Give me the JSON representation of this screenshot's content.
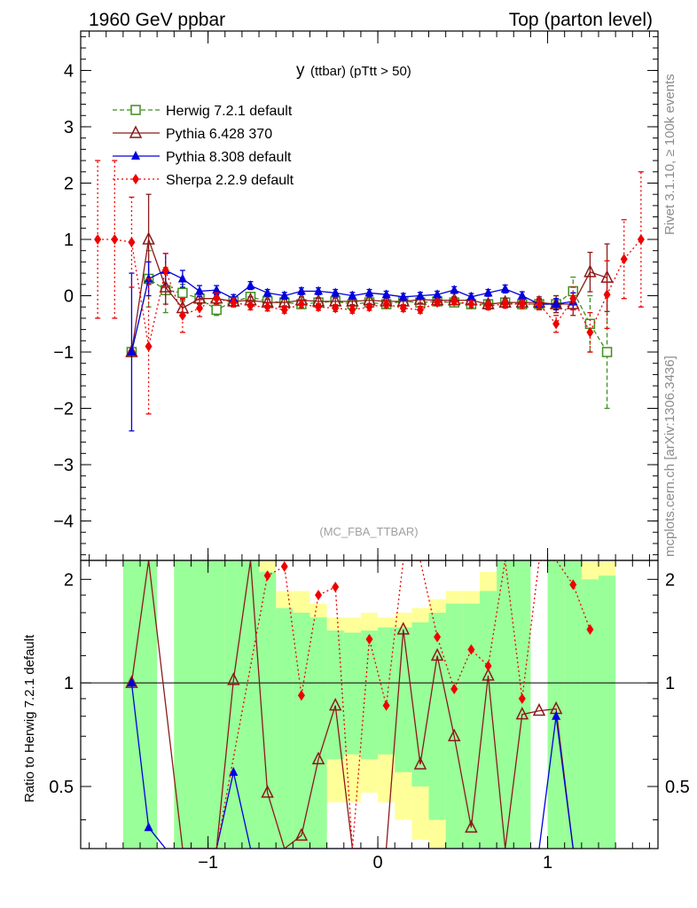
{
  "header": {
    "left": "1960 GeV ppbar",
    "right": "Top (parton level)"
  },
  "side_labels": {
    "rivet": "Rivet 3.1.10, ≥ 100k events",
    "mcplots": "mcplots.cern.ch [arXiv:1306.3436]"
  },
  "chart_data": {
    "type": "line",
    "title_main": "y",
    "title_sub": "(ttbar)  (pTtt > 50)",
    "analysis_tag": "(MC_FBA_TTBAR)",
    "xlim": [
      -1.75,
      1.65
    ],
    "ylim": [
      -4.7,
      4.7
    ],
    "xticks": [
      -1,
      0,
      1
    ],
    "xtick_labels": [
      "−1",
      "0",
      "1"
    ],
    "yticks": [
      -4,
      -3,
      -2,
      -1,
      0,
      1,
      2,
      3,
      4
    ],
    "ytick_labels": [
      "−4",
      "−3",
      "−2",
      "−1",
      "0",
      "1",
      "2",
      "3",
      "4"
    ],
    "series": [
      {
        "name": "Herwig 7.2.1 default",
        "color": "#3f8f1f",
        "marker": "open-square",
        "line": "dashed",
        "x": [
          -1.45,
          -1.35,
          -1.25,
          -1.15,
          -1.05,
          -0.95,
          -0.85,
          -0.75,
          -0.65,
          -0.55,
          -0.45,
          -0.35,
          -0.25,
          -0.15,
          -0.05,
          0.05,
          0.15,
          0.25,
          0.35,
          0.45,
          0.55,
          0.65,
          0.75,
          0.85,
          0.95,
          1.05,
          1.15,
          1.25,
          1.35
        ],
        "y": [
          -1.0,
          0.3,
          0.1,
          0.05,
          -0.05,
          -0.25,
          -0.1,
          -0.02,
          -0.1,
          -0.12,
          -0.15,
          -0.12,
          -0.1,
          -0.15,
          -0.12,
          -0.15,
          -0.1,
          -0.12,
          -0.1,
          -0.12,
          -0.15,
          -0.15,
          -0.12,
          -0.15,
          -0.15,
          -0.15,
          0.08,
          -0.5,
          -1.0
        ],
        "err": [
          0,
          0.5,
          0.4,
          0.15,
          0.1,
          0.1,
          0.08,
          0.07,
          0.06,
          0.06,
          0.06,
          0.06,
          0.06,
          0.06,
          0.06,
          0.06,
          0.06,
          0.06,
          0.06,
          0.06,
          0.06,
          0.07,
          0.07,
          0.08,
          0.1,
          0.15,
          0.25,
          0.5,
          1.0
        ]
      },
      {
        "name": "Pythia 6.428 370",
        "color": "#8b1a1a",
        "marker": "open-triangle",
        "line": "solid",
        "x": [
          -1.45,
          -1.35,
          -1.25,
          -1.15,
          -1.05,
          -0.95,
          -0.85,
          -0.75,
          -0.65,
          -0.55,
          -0.45,
          -0.35,
          -0.25,
          -0.15,
          -0.05,
          0.05,
          0.15,
          0.25,
          0.35,
          0.45,
          0.55,
          0.65,
          0.75,
          0.85,
          0.95,
          1.05,
          1.15,
          1.25,
          1.35
        ],
        "y": [
          -1.0,
          1.0,
          0.15,
          -0.22,
          -0.05,
          -0.05,
          -0.1,
          -0.08,
          -0.12,
          -0.12,
          -0.08,
          -0.1,
          -0.1,
          -0.1,
          -0.08,
          -0.1,
          -0.1,
          -0.07,
          -0.08,
          -0.08,
          -0.08,
          -0.15,
          -0.12,
          -0.12,
          -0.12,
          -0.15,
          -0.15,
          0.42,
          0.32
        ],
        "err": [
          0,
          0.8,
          0.3,
          0.15,
          0.1,
          0.08,
          0.07,
          0.06,
          0.06,
          0.06,
          0.06,
          0.06,
          0.06,
          0.06,
          0.06,
          0.06,
          0.06,
          0.06,
          0.06,
          0.06,
          0.06,
          0.06,
          0.07,
          0.08,
          0.1,
          0.15,
          0.2,
          0.35,
          0.6
        ]
      },
      {
        "name": "Pythia 8.308 default",
        "color": "#0000dd",
        "marker": "filled-triangle",
        "line": "solid",
        "x": [
          -1.45,
          -1.35,
          -1.25,
          -1.15,
          -1.05,
          -0.95,
          -0.85,
          -0.75,
          -0.65,
          -0.55,
          -0.45,
          -0.35,
          -0.25,
          -0.15,
          -0.05,
          0.05,
          0.15,
          0.25,
          0.35,
          0.45,
          0.55,
          0.65,
          0.75,
          0.85,
          0.95,
          1.05,
          1.15
        ],
        "y": [
          -1.0,
          0.3,
          0.45,
          0.3,
          0.08,
          0.1,
          -0.05,
          0.18,
          0.05,
          0.0,
          0.08,
          0.08,
          0.05,
          0.0,
          0.05,
          0.02,
          -0.02,
          0.0,
          0.02,
          0.1,
          -0.02,
          0.05,
          0.12,
          0.0,
          -0.15,
          -0.15,
          -0.1
        ],
        "err": [
          1.4,
          0.3,
          0.3,
          0.15,
          0.1,
          0.08,
          0.07,
          0.07,
          0.06,
          0.06,
          0.06,
          0.06,
          0.06,
          0.06,
          0.06,
          0.06,
          0.06,
          0.06,
          0.06,
          0.06,
          0.06,
          0.06,
          0.07,
          0.07,
          0.1,
          0.1,
          0.15
        ]
      },
      {
        "name": "Sherpa 2.2.9 default",
        "color": "#ee0000",
        "marker": "filled-diamond",
        "line": "dotted",
        "x": [
          -1.65,
          -1.55,
          -1.45,
          -1.35,
          -1.25,
          -1.15,
          -1.05,
          -0.95,
          -0.85,
          -0.75,
          -0.65,
          -0.55,
          -0.45,
          -0.35,
          -0.25,
          -0.15,
          -0.05,
          0.05,
          0.15,
          0.25,
          0.35,
          0.45,
          0.55,
          0.65,
          0.75,
          0.85,
          0.95,
          1.05,
          1.15,
          1.25,
          1.35,
          1.45,
          1.55
        ],
        "y": [
          1.0,
          1.0,
          0.95,
          -0.9,
          0.45,
          -0.35,
          -0.22,
          -0.05,
          -0.12,
          -0.18,
          -0.2,
          -0.25,
          -0.15,
          -0.2,
          -0.22,
          -0.25,
          -0.2,
          -0.15,
          -0.22,
          -0.25,
          -0.12,
          -0.1,
          -0.15,
          -0.18,
          -0.15,
          -0.15,
          -0.15,
          -0.5,
          -0.05,
          -0.65,
          0.02,
          0.65,
          1.0
        ],
        "err": [
          1.4,
          1.4,
          0.8,
          1.2,
          0.3,
          0.3,
          0.15,
          0.1,
          0.08,
          0.07,
          0.07,
          0.06,
          0.06,
          0.06,
          0.06,
          0.06,
          0.06,
          0.06,
          0.06,
          0.06,
          0.06,
          0.06,
          0.06,
          0.07,
          0.07,
          0.08,
          0.1,
          0.15,
          0.2,
          0.35,
          0.6,
          0.7,
          1.2
        ]
      }
    ],
    "ratio": {
      "ylabel": "Ratio to Herwig 7.2.1 default",
      "ylim": [
        0.33,
        2.27
      ],
      "yticks": [
        0.5,
        1,
        2
      ],
      "ytick_labels": [
        "0.5",
        "1",
        "2"
      ],
      "bands": [
        {
          "x0": -1.5,
          "x1": -1.4,
          "g0": 0.3,
          "g1": 2.4,
          "y0": 0.3,
          "y1": 2.4
        },
        {
          "x0": -1.4,
          "x1": -1.3,
          "g0": 0.3,
          "g1": 2.4,
          "y0": 0.3,
          "y1": 2.4
        },
        {
          "x0": -1.2,
          "x1": -1.1,
          "g0": 0.3,
          "g1": 2.4,
          "y0": 0.3,
          "y1": 2.4
        },
        {
          "x0": -1.1,
          "x1": -1.0,
          "g0": 0.3,
          "g1": 2.4,
          "y0": 0.3,
          "y1": 2.4
        },
        {
          "x0": -1.0,
          "x1": -0.9,
          "g0": 0.3,
          "g1": 2.4,
          "y0": 0.3,
          "y1": 2.4
        },
        {
          "x0": -0.9,
          "x1": -0.8,
          "g0": 0.3,
          "g1": 2.4,
          "y0": 0.3,
          "y1": 2.4
        },
        {
          "x0": -0.8,
          "x1": -0.7,
          "g0": 0.3,
          "g1": 2.4,
          "y0": 0.3,
          "y1": 2.4
        },
        {
          "x0": -0.7,
          "x1": -0.6,
          "g0": 0.3,
          "g1": 2.1,
          "y0": 0.3,
          "y1": 2.4
        },
        {
          "x0": -0.6,
          "x1": -0.5,
          "g0": 0.3,
          "g1": 1.65,
          "y0": 0.3,
          "y1": 1.85
        },
        {
          "x0": -0.5,
          "x1": -0.4,
          "g0": 0.3,
          "g1": 1.6,
          "y0": 0.3,
          "y1": 1.85
        },
        {
          "x0": -0.4,
          "x1": -0.3,
          "g0": 0.3,
          "g1": 1.55,
          "y0": 0.3,
          "y1": 1.7
        },
        {
          "x0": -0.3,
          "x1": -0.2,
          "g0": 0.6,
          "g1": 1.42,
          "y0": 0.45,
          "y1": 1.55
        },
        {
          "x0": -0.2,
          "x1": -0.1,
          "g0": 0.62,
          "g1": 1.4,
          "y0": 0.45,
          "y1": 1.55
        },
        {
          "x0": -0.1,
          "x1": 0.0,
          "g0": 0.6,
          "g1": 1.42,
          "y0": 0.48,
          "y1": 1.6
        },
        {
          "x0": 0.0,
          "x1": 0.1,
          "g0": 0.62,
          "g1": 1.45,
          "y0": 0.45,
          "y1": 1.55
        },
        {
          "x0": 0.1,
          "x1": 0.2,
          "g0": 0.55,
          "g1": 1.45,
          "y0": 0.4,
          "y1": 1.6
        },
        {
          "x0": 0.2,
          "x1": 0.3,
          "g0": 0.5,
          "g1": 1.5,
          "y0": 0.35,
          "y1": 1.65
        },
        {
          "x0": 0.3,
          "x1": 0.4,
          "g0": 0.4,
          "g1": 1.6,
          "y0": 0.3,
          "y1": 1.75
        },
        {
          "x0": 0.4,
          "x1": 0.5,
          "g0": 0.3,
          "g1": 1.7,
          "y0": 0.3,
          "y1": 1.85
        },
        {
          "x0": 0.5,
          "x1": 0.6,
          "g0": 0.3,
          "g1": 1.7,
          "y0": 0.3,
          "y1": 1.85
        },
        {
          "x0": 0.6,
          "x1": 0.7,
          "g0": 0.3,
          "g1": 1.85,
          "y0": 0.3,
          "y1": 2.1
        },
        {
          "x0": 0.7,
          "x1": 0.8,
          "g0": 0.3,
          "g1": 2.4,
          "y0": 0.3,
          "y1": 2.4
        },
        {
          "x0": 0.8,
          "x1": 0.9,
          "g0": 0.3,
          "g1": 2.4,
          "y0": 0.3,
          "y1": 2.4
        },
        {
          "x0": 1.0,
          "x1": 1.1,
          "g0": 0.3,
          "g1": 2.4,
          "y0": 0.3,
          "y1": 2.4
        },
        {
          "x0": 1.1,
          "x1": 1.2,
          "g0": 0.3,
          "g1": 2.4,
          "y0": 0.3,
          "y1": 2.4
        },
        {
          "x0": 1.2,
          "x1": 1.3,
          "g0": 0.3,
          "g1": 2.0,
          "y0": 0.3,
          "y1": 2.25
        },
        {
          "x0": 1.3,
          "x1": 1.4,
          "g0": 0.3,
          "g1": 2.05,
          "y0": 0.3,
          "y1": 2.25
        }
      ],
      "series": [
        {
          "name": "Pythia 6.428 370",
          "x": [
            -1.45,
            -1.35,
            -1.15,
            -0.95,
            -0.85,
            -0.75,
            -0.65,
            -0.55,
            -0.45,
            -0.35,
            -0.25,
            -0.15,
            -0.05,
            0.05,
            0.15,
            0.25,
            0.35,
            0.45,
            0.55,
            0.65,
            0.75,
            0.85,
            0.95,
            1.05,
            1.15
          ],
          "y": [
            1.0,
            2.4,
            0.25,
            0.25,
            1.02,
            2.4,
            0.48,
            0.25,
            0.36,
            0.6,
            0.86,
            0.25,
            0.25,
            0.25,
            1.43,
            0.58,
            1.2,
            0.7,
            0.38,
            1.05,
            0.25,
            0.81,
            0.83,
            0.84,
            0.25
          ]
        },
        {
          "name": "Pythia 8.308 default",
          "x": [
            -1.45,
            -1.35,
            -1.25,
            -0.95,
            -0.85,
            -0.75,
            0.95,
            1.05,
            1.15
          ],
          "y": [
            1.0,
            0.38,
            0.25,
            0.25,
            0.55,
            0.25,
            0.25,
            0.8,
            0.25
          ]
        },
        {
          "name": "Sherpa 2.2.9 default",
          "x": [
            -1.15,
            -0.95,
            -0.65,
            -0.55,
            -0.45,
            -0.35,
            -0.25,
            -0.15,
            -0.05,
            0.05,
            0.15,
            0.25,
            0.35,
            0.45,
            0.55,
            0.65,
            0.75,
            0.85,
            0.95,
            1.05,
            1.15,
            1.25
          ],
          "y": [
            0.25,
            0.25,
            2.05,
            2.18,
            0.92,
            1.8,
            1.9,
            0.25,
            1.34,
            0.86,
            2.4,
            2.4,
            1.36,
            0.96,
            1.25,
            1.12,
            2.4,
            0.9,
            2.4,
            2.4,
            1.93,
            1.43
          ]
        }
      ]
    }
  }
}
